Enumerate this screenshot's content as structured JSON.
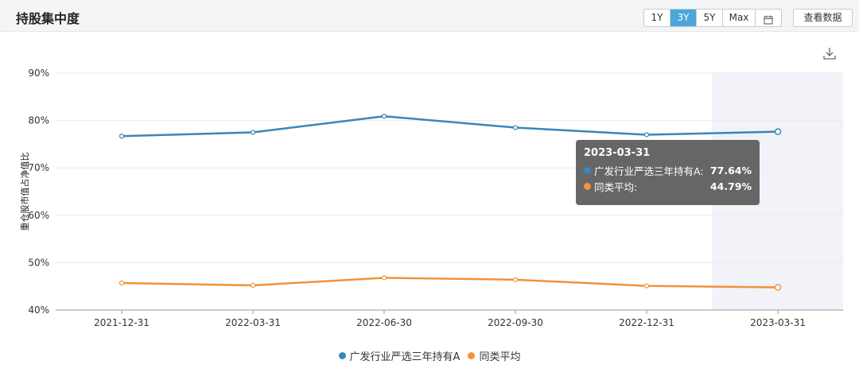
{
  "header": {
    "title": "持股集中度",
    "ranges": [
      "1Y",
      "3Y",
      "5Y",
      "Max"
    ],
    "active_range": "3Y",
    "calendar_icon": "calendar-icon",
    "view_data_label": "查看数据",
    "download_icon": "download-icon"
  },
  "colors": {
    "series_fund": "#3a86b8",
    "series_avg": "#f2923a",
    "active_button": "#4aa8d8",
    "highlight_band": "#f2f3f9"
  },
  "chart_data": {
    "type": "line",
    "title": "",
    "xlabel": "",
    "ylabel": "重仓股市值占净值比",
    "categories": [
      "2021-12-31",
      "2022-03-31",
      "2022-06-30",
      "2022-09-30",
      "2022-12-31",
      "2023-03-31"
    ],
    "yticks": [
      "90%",
      "80%",
      "70%",
      "60%",
      "50%",
      "40%"
    ],
    "ylim": [
      40,
      90
    ],
    "grid": true,
    "legend_position": "bottom",
    "highlighted_category": "2023-03-31",
    "series": [
      {
        "name": "广发行业严选三年持有A",
        "values": [
          76.7,
          77.5,
          80.9,
          78.5,
          77.0,
          77.64
        ]
      },
      {
        "name": "同类平均",
        "values": [
          45.7,
          45.2,
          46.8,
          46.4,
          45.1,
          44.79
        ]
      }
    ]
  },
  "tooltip": {
    "date": "2023-03-31",
    "rows": [
      {
        "name": "广发行业严选三年持有A:",
        "value": "77.64%"
      },
      {
        "name": "同类平均:",
        "value": "44.79%"
      }
    ]
  }
}
